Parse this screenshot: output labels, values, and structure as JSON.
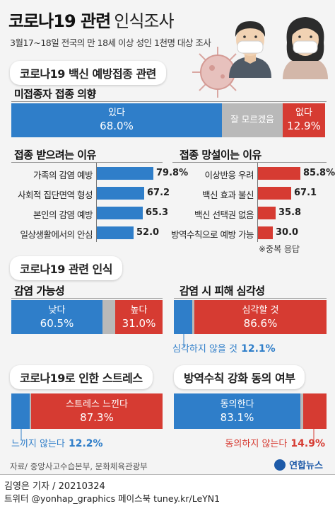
{
  "header": {
    "title_bold": "코로나19 관련",
    "title_light": "인식조사",
    "subtitle": "3월17~18일 전국의 만 18세 이상 성인 1천명 대상 조사"
  },
  "colors": {
    "blue": "#2f7ec9",
    "red": "#d63b32",
    "gray": "#b9b9b9"
  },
  "section_vaccine": {
    "label": "코로나19 백신 예방접종 관련",
    "intent": {
      "title": "미접종자 접종 의향",
      "segments": [
        {
          "label": "있다",
          "value": 68.0,
          "display": "68.0%",
          "color": "blue"
        },
        {
          "label": "잘 모르겠음",
          "value": 19.1,
          "display": "",
          "color": "gray"
        },
        {
          "label": "없다",
          "value": 12.9,
          "display": "12.9%",
          "color": "red"
        }
      ]
    },
    "reasons_yes": {
      "title": "접종 받으려는 이유",
      "items": [
        {
          "label": "가족의 감염 예방",
          "value": 79.8,
          "display": "79.8%"
        },
        {
          "label": "사회적 집단면역 형성",
          "value": 67.2,
          "display": "67.2"
        },
        {
          "label": "본인의 감염 예방",
          "value": 65.3,
          "display": "65.3"
        },
        {
          "label": "일상생활에서의 안심",
          "value": 52.0,
          "display": "52.0"
        }
      ]
    },
    "reasons_no": {
      "title": "접종 망설이는 이유",
      "items": [
        {
          "label": "이상반응 우려",
          "value": 85.8,
          "display": "85.8%"
        },
        {
          "label": "백신 효과 불신",
          "value": 67.1,
          "display": "67.1"
        },
        {
          "label": "백신 선택권 없음",
          "value": 35.8,
          "display": "35.8"
        },
        {
          "label": "방역수칙으로 예방 가능",
          "value": 30.0,
          "display": "30.0"
        }
      ]
    },
    "note": "※중복 응답"
  },
  "section_perception": {
    "label": "코로나19 관련 인식",
    "infection": {
      "title": "감염 가능성",
      "segments": [
        {
          "label": "낮다",
          "value": 60.5,
          "display": "60.5%",
          "color": "blue"
        },
        {
          "label": "",
          "value": 8.5,
          "display": "",
          "color": "gray"
        },
        {
          "label": "높다",
          "value": 31.0,
          "display": "31.0%",
          "color": "red"
        }
      ]
    },
    "severity": {
      "title": "감염 시 피해 심각성",
      "segments": [
        {
          "label": "",
          "value": 12.1,
          "display": "",
          "color": "blue"
        },
        {
          "label": "",
          "value": 1.3,
          "display": "",
          "color": "gray"
        },
        {
          "label": "심각할 것",
          "value": 86.6,
          "display": "86.6%",
          "color": "red"
        }
      ],
      "callout_label": "심각하지 않을 것",
      "callout_value": "12.1%"
    }
  },
  "section_stress": {
    "label": "코로나19로 인한 스트레스",
    "segments": [
      {
        "label": "",
        "value": 12.2,
        "display": "",
        "color": "blue"
      },
      {
        "label": "",
        "value": 0.5,
        "display": "",
        "color": "gray"
      },
      {
        "label": "스트레스 느낀다",
        "value": 87.3,
        "display": "87.3%",
        "color": "red"
      }
    ],
    "callout_label": "느끼지 않는다",
    "callout_value": "12.2%"
  },
  "section_quarantine": {
    "label": "방역수칙 강화 동의 여부",
    "segments": [
      {
        "label": "동의한다",
        "value": 83.1,
        "display": "83.1%",
        "color": "blue"
      },
      {
        "label": "",
        "value": 2.0,
        "display": "",
        "color": "gray"
      },
      {
        "label": "",
        "value": 14.9,
        "display": "",
        "color": "red"
      }
    ],
    "callout_label": "동의하지 않는다",
    "callout_value": "14.9%"
  },
  "footer": {
    "source": "자료/ 중앙사고수습본부, 문화체육관광부",
    "logo": "연합뉴스",
    "reporter": "김영은 기자 / 20210324",
    "social": "트위터 @yonhap_graphics  페이스북 tuney.kr/LeYN1"
  },
  "chart_data": [
    {
      "type": "bar",
      "title": "미접종자 접종 의향",
      "categories": [
        "있다",
        "잘 모르겠음",
        "없다"
      ],
      "values": [
        68.0,
        19.1,
        12.9
      ]
    },
    {
      "type": "bar",
      "title": "접종 받으려는 이유",
      "categories": [
        "가족의 감염 예방",
        "사회적 집단면역 형성",
        "본인의 감염 예방",
        "일상생활에서의 안심"
      ],
      "values": [
        79.8,
        67.2,
        65.3,
        52.0
      ]
    },
    {
      "type": "bar",
      "title": "접종 망설이는 이유",
      "categories": [
        "이상반응 우려",
        "백신 효과 불신",
        "백신 선택권 없음",
        "방역수칙으로 예방 가능"
      ],
      "values": [
        85.8,
        67.1,
        35.8,
        30.0
      ]
    },
    {
      "type": "bar",
      "title": "감염 가능성",
      "categories": [
        "낮다",
        "높다"
      ],
      "values": [
        60.5,
        31.0
      ]
    },
    {
      "type": "bar",
      "title": "감염 시 피해 심각성",
      "categories": [
        "심각하지 않을 것",
        "심각할 것"
      ],
      "values": [
        12.1,
        86.6
      ]
    },
    {
      "type": "bar",
      "title": "코로나19로 인한 스트레스",
      "categories": [
        "느끼지 않는다",
        "스트레스 느낀다"
      ],
      "values": [
        12.2,
        87.3
      ]
    },
    {
      "type": "bar",
      "title": "방역수칙 강화 동의 여부",
      "categories": [
        "동의한다",
        "동의하지 않는다"
      ],
      "values": [
        83.1,
        14.9
      ]
    }
  ]
}
